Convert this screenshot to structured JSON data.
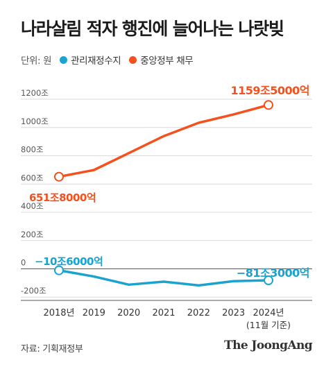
{
  "title": "나라살림 적자 행진에 늘어나는 나랏빚",
  "unit_label": "단위: 원",
  "source": "자료: 기획재정부",
  "brand": "The JoongAng",
  "colors": {
    "blue": "#1aa3cf",
    "orange": "#f4511e",
    "grid": "#d9d9d9",
    "axis": "#555555"
  },
  "chart_data": {
    "type": "line",
    "categories": [
      "2018년",
      "2019",
      "2020",
      "2021",
      "2022",
      "2023",
      "2024년"
    ],
    "x_sublabel": "(11월 기준)",
    "y_ticks": [
      1200,
      1000,
      800,
      600,
      400,
      200,
      0,
      -200
    ],
    "y_tick_labels": [
      "1200조",
      "1000조",
      "800조",
      "600조",
      "400조",
      "200조",
      "0",
      "-200조"
    ],
    "ylim": [
      -200,
      1250
    ],
    "grid": true,
    "legend_position": "top-left",
    "series": [
      {
        "name": "관리재정수지",
        "color": "#1aa3cf",
        "values": [
          -10.6,
          -54.4,
          -112,
          -90.6,
          -117,
          -87,
          -81.3
        ],
        "start_label": "−10조6000억",
        "end_label": "−81조3000억"
      },
      {
        "name": "중앙정부 채무",
        "color": "#f4511e",
        "values": [
          651.8,
          699,
          819,
          939.1,
          1033.4,
          1092.5,
          1159.5
        ],
        "start_label": "651조8000억",
        "end_label": "1159조5000억"
      }
    ]
  }
}
